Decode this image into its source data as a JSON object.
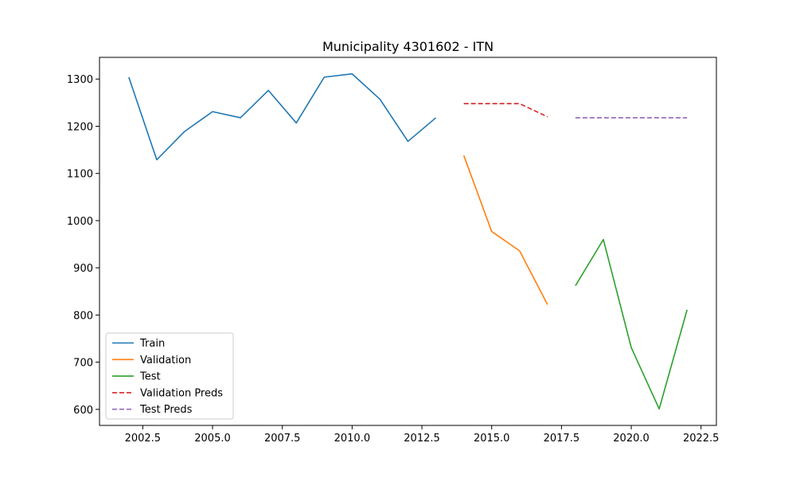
{
  "chart_data": {
    "type": "line",
    "title": "Municipality 4301602 - ITN",
    "xlabel": "",
    "ylabel": "",
    "xlim": [
      2000.95,
      2023.05
    ],
    "ylim": [
      566,
      1346
    ],
    "x_ticks": [
      2002.5,
      2005.0,
      2007.5,
      2010.0,
      2012.5,
      2015.0,
      2017.5,
      2020.0,
      2022.5
    ],
    "x_tick_labels": [
      "2002.5",
      "2005.0",
      "2007.5",
      "2010.0",
      "2012.5",
      "2015.0",
      "2017.5",
      "2020.0",
      "2022.5"
    ],
    "y_ticks": [
      600,
      700,
      800,
      900,
      1000,
      1100,
      1200,
      1300
    ],
    "y_tick_labels": [
      "600",
      "700",
      "800",
      "900",
      "1000",
      "1100",
      "1200",
      "1300"
    ],
    "grid": false,
    "legend_position": "lower-left",
    "series": [
      {
        "name": "Train",
        "color": "#1f77b4",
        "style": "solid",
        "x": [
          2002,
          2003,
          2004,
          2005,
          2006,
          2007,
          2008,
          2009,
          2010,
          2011,
          2012,
          2013
        ],
        "y": [
          1304,
          1129,
          1189,
          1231,
          1218,
          1276,
          1207,
          1304,
          1311,
          1257,
          1168,
          1218
        ]
      },
      {
        "name": "Validation",
        "color": "#ff7f0e",
        "style": "solid",
        "x": [
          2014,
          2015,
          2016,
          2017
        ],
        "y": [
          1138,
          977,
          936,
          822
        ]
      },
      {
        "name": "Test",
        "color": "#2ca02c",
        "style": "solid",
        "x": [
          2018,
          2019,
          2020,
          2021,
          2022
        ],
        "y": [
          862,
          960,
          731,
          601,
          811
        ]
      },
      {
        "name": "Validation Preds",
        "color": "#d62728",
        "style": "dashed",
        "x": [
          2014,
          2015,
          2016,
          2017
        ],
        "y": [
          1248,
          1248,
          1248,
          1220
        ]
      },
      {
        "name": "Test Preds",
        "color": "#9467bd",
        "style": "dashed",
        "x": [
          2018,
          2019,
          2020,
          2021,
          2022
        ],
        "y": [
          1218,
          1218,
          1218,
          1218,
          1218
        ]
      }
    ]
  }
}
